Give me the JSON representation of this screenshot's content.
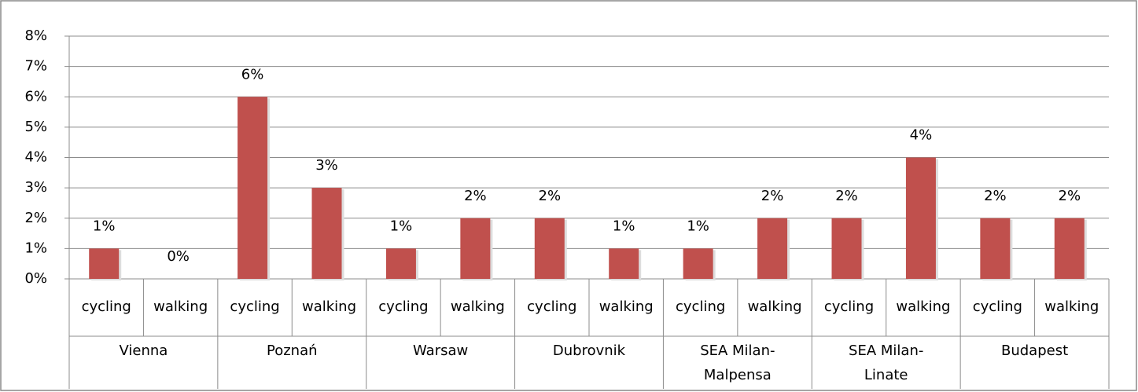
{
  "chart_data": {
    "type": "bar",
    "color": "#c0504d",
    "grid": true,
    "ylim": [
      0,
      8
    ],
    "yticks": [
      {
        "value": 0,
        "label": "0%"
      },
      {
        "value": 1,
        "label": "1%"
      },
      {
        "value": 2,
        "label": "2%"
      },
      {
        "value": 3,
        "label": "3%"
      },
      {
        "value": 4,
        "label": "4%"
      },
      {
        "value": 5,
        "label": "5%"
      },
      {
        "value": 6,
        "label": "6%"
      },
      {
        "value": 7,
        "label": "7%"
      },
      {
        "value": 8,
        "label": "8%"
      }
    ],
    "groups": [
      {
        "name": "Vienna",
        "categories": [
          "cycling",
          "walking"
        ],
        "values": [
          1,
          0
        ],
        "value_labels": [
          "1%",
          "0%"
        ]
      },
      {
        "name": "Poznań",
        "categories": [
          "cycling",
          "walking"
        ],
        "values": [
          6,
          3
        ],
        "value_labels": [
          "6%",
          "3%"
        ]
      },
      {
        "name": "Warsaw",
        "categories": [
          "cycling",
          "walking"
        ],
        "values": [
          1,
          2
        ],
        "value_labels": [
          "1%",
          "2%"
        ]
      },
      {
        "name": "Dubrovnik",
        "categories": [
          "cycling",
          "walking"
        ],
        "values": [
          2,
          1
        ],
        "value_labels": [
          "2%",
          "1%"
        ]
      },
      {
        "name": "SEA Milan-Malpensa",
        "categories": [
          "cycling",
          "walking"
        ],
        "values": [
          1,
          2
        ],
        "value_labels": [
          "1%",
          "2%"
        ]
      },
      {
        "name": "SEA Milan-Linate",
        "categories": [
          "cycling",
          "walking"
        ],
        "values": [
          2,
          4
        ],
        "value_labels": [
          "2%",
          "4%"
        ]
      },
      {
        "name": "Budapest",
        "categories": [
          "cycling",
          "walking"
        ],
        "values": [
          2,
          2
        ],
        "value_labels": [
          "2%",
          "2%"
        ]
      }
    ]
  }
}
